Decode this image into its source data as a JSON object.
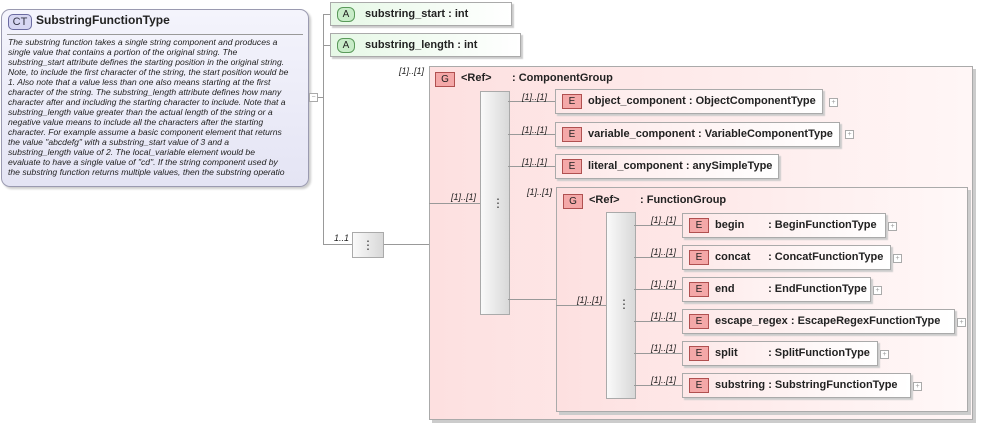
{
  "complex_type": {
    "badge": "CT",
    "name": "SubstringFunctionType",
    "description": [
      "The substring function takes a single string component and produces a",
      "single value that contains a portion of the original string. The",
      "substring_start attribute defines the starting position in the original string.",
      "Note, to include the first character of the string, the start position would be",
      "1. Also note that a value less than one also means starting at the first",
      "character of the string. The substring_length attribute defines how many",
      "character after and including the starting character to include. Note that a",
      "substring_length value greater than the actual length of the string or a",
      "negative value means to include all the characters after the starting",
      "character. For example assume a basic component element that returns",
      "the value \"abcdefg\" with a substring_start value of 3 and a",
      "substring_length value of 2. The local_variable element would be",
      "evaluate to have a single value of \"cd\". If the string component used by",
      "the substring function returns multiple values, then the substring operatio"
    ]
  },
  "attributes": [
    {
      "badge": "A",
      "label": "substring_start : int"
    },
    {
      "badge": "A",
      "label": "substring_length : int"
    }
  ],
  "sequence_cardinality": "1..1",
  "component_group": {
    "cardinality": "[1]..[1]",
    "badge": "G",
    "ref": "<Ref>",
    "type": ": ComponentGroup",
    "seq_cardinality": "[1]..[1]",
    "elements": [
      {
        "card": "[1]..[1]",
        "badge": "E",
        "name": "object_component",
        "type": ": ObjectComponentType",
        "expand": "+"
      },
      {
        "card": "[1]..[1]",
        "badge": "E",
        "name": "variable_component",
        "type": ": VariableComponentType",
        "expand": "+"
      },
      {
        "card": "[1]..[1]",
        "badge": "E",
        "name": "literal_component",
        "type": ": anySimpleType"
      }
    ]
  },
  "function_group": {
    "cardinality": "[1]..[1]",
    "badge": "G",
    "ref": "<Ref>",
    "type": ": FunctionGroup",
    "seq_cardinality": "[1]..[1]",
    "elements": [
      {
        "card": "[1]..[1]",
        "badge": "E",
        "name": "begin",
        "type": ": BeginFunctionType",
        "expand": "+"
      },
      {
        "card": "[1]..[1]",
        "badge": "E",
        "name": "concat",
        "type": ": ConcatFunctionType",
        "expand": "+"
      },
      {
        "card": "[1]..[1]",
        "badge": "E",
        "name": "end",
        "type": ": EndFunctionType",
        "expand": "+"
      },
      {
        "card": "[1]..[1]",
        "badge": "E",
        "name": "escape_regex",
        "type": ": EscapeRegexFunctionType",
        "expand": "+"
      },
      {
        "card": "[1]..[1]",
        "badge": "E",
        "name": "split",
        "type": ": SplitFunctionType",
        "expand": "+"
      },
      {
        "card": "[1]..[1]",
        "badge": "E",
        "name": "substring",
        "type": ": SubstringFunctionType",
        "expand": "+"
      }
    ]
  },
  "colors": {
    "complex_type": "#e4e4f4",
    "attribute": "#e6f8e6",
    "group": "#fde0e0",
    "badge_red": "#f4a8a8"
  }
}
